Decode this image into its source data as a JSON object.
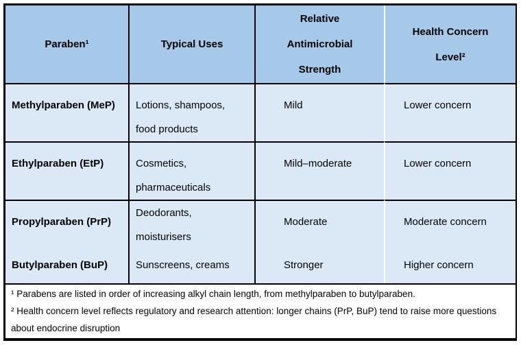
{
  "table": {
    "style": {
      "header_bg": "#A6C9E9",
      "row_bg": "#DBE9F7",
      "border_color": "#000000",
      "light_divider": "#FFFFFF"
    },
    "header": {
      "paraben": "Paraben¹",
      "typical_uses": "Typical Uses",
      "strength_lines": [
        "Relative",
        "Antimicrobial",
        "Strength"
      ],
      "concern_lines": [
        "Health Concern",
        "Level²"
      ]
    },
    "rows": [
      {
        "paraben": "Methylparaben (MeP)",
        "uses_lines": [
          "Lotions, shampoos,",
          "food products"
        ],
        "strength": "Mild",
        "concern": "Lower concern"
      },
      {
        "paraben": "Ethylparaben (EtP)",
        "uses_lines": [
          "Cosmetics,",
          "pharmaceuticals"
        ],
        "strength": "Mild–moderate",
        "concern": "Lower concern"
      },
      {
        "paraben": "Propylparaben (PrP)",
        "uses_lines": [
          "Deodorants,",
          "moisturisers"
        ],
        "strength": "Moderate",
        "concern": "Moderate concern"
      },
      {
        "paraben": "Butylparaben (BuP)",
        "uses_lines": [
          "Sunscreens, creams"
        ],
        "strength": "Stronger",
        "concern": "Higher concern"
      }
    ],
    "footnotes": [
      "¹ Parabens are listed in order of increasing alkyl chain length, from methylparaben to butylparaben.",
      "² Health concern level reflects regulatory and research attention: longer chains (PrP, BuP) tend to raise more questions about endocrine disruption"
    ]
  }
}
